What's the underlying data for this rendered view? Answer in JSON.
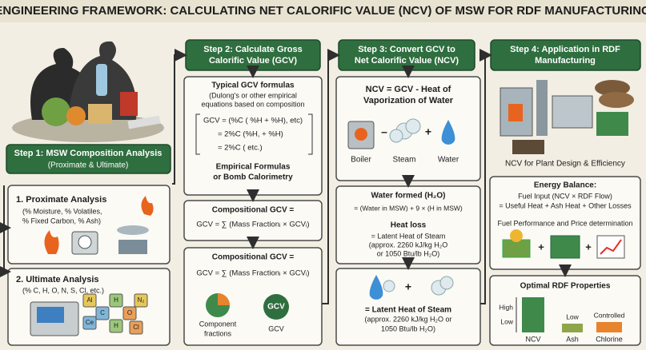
{
  "title": "ENGINEERING FRAMEWORK: CALCULATING NET CALORIFIC VALUE (NCV) OF MSW FOR RDF MANUFACTURING",
  "step1": {
    "header": "Step 1: MSW Composition Analysis",
    "subheader": "(Proximate & Ultimate)",
    "proximate": {
      "title": "1. Proximate Analysis",
      "lines": [
        "(% Moisture, % Volatiles,",
        "% Fixed Carbon, % Ash)"
      ]
    },
    "ultimate": {
      "title": "2. Ultimate Analysis",
      "lines": [
        "(% C, H, O, N, S, Cl, etc.)"
      ],
      "elements": [
        "Al",
        "C",
        "H",
        "O",
        "N₂",
        "Ce",
        "H",
        "Cl"
      ]
    }
  },
  "step2": {
    "header": [
      "Step 2: Calculate Gross",
      "Calorific Value (GCV)"
    ],
    "formulas": {
      "title": "Typical GCV formulas",
      "lines": [
        "(Dulong's or other empirical",
        "equations based on composition"
      ],
      "equations": [
        "GCV = (%C ( %H + %H), etc)",
        "= 2%C (%H, + %H)",
        "= 2%C ( etc.)"
      ],
      "footer": [
        "Empirical Formulas",
        "or Bomb Calorimetry"
      ]
    },
    "compositional": {
      "title": "Compositional GCV =",
      "equation": "GCV = ∑ (Mass Fractionᵢ × GCVᵢ)"
    },
    "compositional_2": {
      "title": "Compositional GCV =",
      "equation": "GCV = ∑ (Mass Fractionᵢ × GCVᵢ)",
      "labels": [
        "Component",
        "fractions"
      ],
      "badge": "GCV",
      "badge_label": "GCV"
    }
  },
  "step3": {
    "header": [
      "Step 3: Convert GCV to",
      "Net Calorific Value (NCV)"
    ],
    "ncv": {
      "lines": [
        "NCV = GCV - Heat of",
        "Vaporization of Water"
      ],
      "icons": [
        "Boiler",
        "Steam",
        "Water"
      ],
      "minus": "–",
      "plus": "+"
    },
    "water": {
      "title": "Water formed (H₂O)",
      "equation": "= (Water in MSW) + 9 × (H in MSW)",
      "heat_title": "Heat loss",
      "heat_lines": [
        "= Latent Heat of Steam",
        "(approx. 2260 kJ/kg H₂O",
        "or 1050 Btu/lb H₂O)"
      ]
    },
    "latent": {
      "plus": "+",
      "lines": [
        "= Latent Heat of Steam",
        "(approx. 2260 kJ/kg H₂O or",
        "1050 Btu/lb H₂O)"
      ]
    }
  },
  "step4": {
    "header": [
      "Step 4: Application in RDF",
      "Manufacturing"
    ],
    "plant": "NCV for Plant Design & Efficiency",
    "energy": {
      "title": "Energy Balance:",
      "lines": [
        "Fuel Input (NCV × RDF Flow)",
        "= Useful Heat + Ash Heat + Other Losses"
      ],
      "footer": "Fuel Performance and Price determination",
      "plus": [
        "+",
        "+"
      ]
    },
    "optimal": {
      "title": "Optimal RDF Properties",
      "levels": [
        "High",
        "Low"
      ],
      "bars": [
        "NCV",
        "Ash",
        "Chlorine"
      ],
      "bar_notes": [
        "Low",
        "Controlled"
      ]
    }
  }
}
